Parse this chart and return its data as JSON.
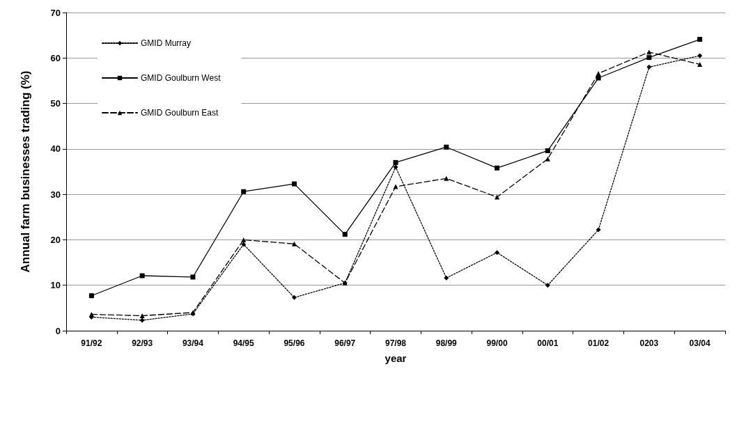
{
  "chart_data": {
    "type": "line",
    "xlabel": "year",
    "ylabel": "Annual farm businesses trading (%)",
    "categories": [
      "91/92",
      "92/93",
      "93/94",
      "94/95",
      "95/96",
      "96/97",
      "97/98",
      "98/99",
      "99/00",
      "00/01",
      "01/02",
      "0203",
      "03/04"
    ],
    "series": [
      {
        "name": "GMID Murray",
        "color": "#000000",
        "marker": "diamond",
        "line_style": "dotted",
        "values": [
          3,
          2.3,
          3.7,
          19,
          7.3,
          10.5,
          36,
          11.6,
          17.2,
          10,
          22.2,
          58,
          60.5
        ]
      },
      {
        "name": "GMID Goulburn West",
        "color": "#000000",
        "marker": "square",
        "line_style": "solid",
        "values": [
          7.7,
          12.1,
          11.8,
          30.6,
          32.3,
          21.2,
          37,
          40.4,
          35.8,
          39.6,
          55.6,
          60.1,
          64.1
        ]
      },
      {
        "name": "GMID Goulburn East",
        "color": "#000000",
        "marker": "triangle",
        "line_style": "dashed",
        "values": [
          3.6,
          3.3,
          4,
          20,
          19.1,
          10.5,
          31.7,
          33.5,
          29.4,
          37.8,
          56.6,
          61.3,
          58.6
        ]
      }
    ],
    "ylim": [
      0,
      70
    ],
    "yticks": [
      0,
      10,
      20,
      30,
      40,
      50,
      60,
      70
    ],
    "grid": "y",
    "legend": "top left"
  }
}
